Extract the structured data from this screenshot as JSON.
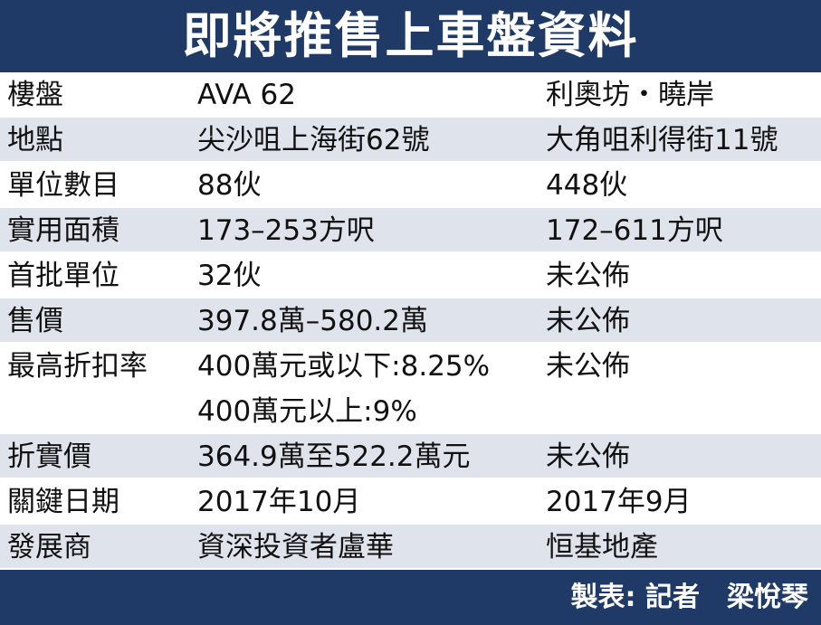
{
  "header": {
    "title": "即將推售上車盤資料"
  },
  "table": {
    "rows": [
      [
        "樓盤",
        "AVA 62",
        "利奧坊・曉岸"
      ],
      [
        "地點",
        "尖沙咀上海街62號",
        "大角咀利得街11號"
      ],
      [
        "單位數目",
        "88伙",
        "448伙"
      ],
      [
        "實用面積",
        "173–253方呎",
        "172–611方呎"
      ],
      [
        "首批單位",
        "32伙",
        "未公佈"
      ],
      [
        "售價",
        "397.8萬–580.2萬",
        "未公佈"
      ],
      [
        "最高折扣率",
        [
          "400萬元或以下:8.25%",
          "400萬元以上:9%"
        ],
        "未公佈"
      ],
      [
        "折實價",
        "364.9萬至522.2萬元",
        "未公佈"
      ],
      [
        "關鍵日期",
        "2017年10月",
        "2017年9月"
      ],
      [
        "發展商",
        "資深投資者盧華",
        "恒基地產"
      ]
    ]
  },
  "footer": {
    "credit": "製表: 記者　梁悅琴"
  }
}
